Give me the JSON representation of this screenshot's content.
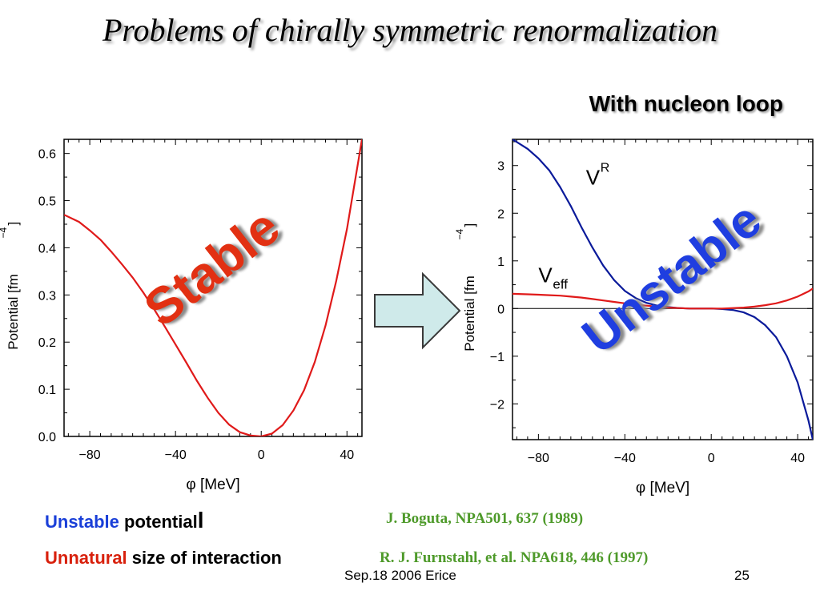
{
  "slide": {
    "title": "Problems of chirally symmetric renormalization",
    "subtitle": "With nucleon loop",
    "stable_label": "Stable",
    "unstable_label": "Unstable",
    "notes": [
      {
        "colored": "Unstable",
        "rest": " potential",
        "tail": "l"
      },
      {
        "colored": "Unnatural",
        "rest": " size of interaction"
      }
    ],
    "citations": [
      "J. Boguta, NPA501, 637 (1989)",
      "R. J. Furnstahl, et al.  NPA618,  446 (1997)"
    ],
    "footer": {
      "date": "Sep.18 2006 Erice",
      "page": "25"
    },
    "colors": {
      "curve_red": "#e01a1a",
      "curve_blue": "#0a1a9a",
      "arrow_fill": "#cfeaea",
      "stable_text": "#e23012",
      "unstable_text": "#1f3ee0"
    }
  },
  "chart_data": [
    {
      "type": "line",
      "title": "",
      "xlabel": "φ [MeV]",
      "ylabel": "Potential [fm",
      "ylabel_sup": "−4",
      "ylabel_close": "]",
      "xlim": [
        -92,
        47
      ],
      "ylim": [
        0,
        0.63
      ],
      "xticks": [
        -80,
        -40,
        0,
        40
      ],
      "xtick_labels": [
        "−80",
        "−40",
        "0",
        "40"
      ],
      "yticks": [
        0,
        0.1,
        0.2,
        0.3,
        0.4,
        0.5,
        0.6
      ],
      "ytick_labels": [
        "0.0",
        "0.1",
        "0.2",
        "0.3",
        "0.4",
        "0.5",
        "0.6"
      ],
      "series": [
        {
          "color": "#e01a1a",
          "x": [
            -92,
            -85,
            -80,
            -75,
            -70,
            -65,
            -60,
            -55,
            -50,
            -45,
            -40,
            -35,
            -30,
            -25,
            -20,
            -15,
            -10,
            -5,
            0,
            5,
            10,
            15,
            20,
            25,
            30,
            35,
            40,
            45,
            47
          ],
          "y": [
            0.47,
            0.455,
            0.437,
            0.417,
            0.392,
            0.365,
            0.337,
            0.305,
            0.27,
            0.233,
            0.195,
            0.157,
            0.118,
            0.082,
            0.05,
            0.025,
            0.009,
            0.002,
            0.0,
            0.006,
            0.024,
            0.055,
            0.098,
            0.158,
            0.235,
            0.33,
            0.44,
            0.575,
            0.63
          ]
        }
      ]
    },
    {
      "type": "line",
      "title": "",
      "xlabel": "φ [MeV]",
      "ylabel": "Potential [fm",
      "ylabel_sup": "−4",
      "ylabel_close": "]",
      "xlim": [
        -92,
        47
      ],
      "ylim": [
        -2.75,
        3.55
      ],
      "xticks": [
        -80,
        -40,
        0,
        40
      ],
      "xtick_labels": [
        "−80",
        "−40",
        "0",
        "40"
      ],
      "yticks": [
        -2,
        -1,
        0,
        1,
        2,
        3
      ],
      "ytick_labels": [
        "−2",
        "−1",
        "0",
        "1",
        "2",
        "3"
      ],
      "annotations": [
        {
          "text": "V",
          "sup": "R",
          "x": -58,
          "y": 2.6
        },
        {
          "text": "V",
          "sub": "eff",
          "x": -80,
          "y": 0.55
        }
      ],
      "series": [
        {
          "name": "V^R",
          "color": "#0a1a9a",
          "x": [
            -92,
            -85,
            -80,
            -75,
            -70,
            -65,
            -60,
            -55,
            -50,
            -45,
            -40,
            -35,
            -30,
            -25,
            -20,
            -15,
            -10,
            -5,
            0,
            5,
            10,
            15,
            20,
            25,
            30,
            35,
            40,
            45,
            47
          ],
          "y": [
            3.55,
            3.35,
            3.15,
            2.9,
            2.55,
            2.15,
            1.7,
            1.28,
            0.9,
            0.6,
            0.37,
            0.22,
            0.12,
            0.06,
            0.03,
            0.01,
            0.0,
            0.0,
            0.0,
            -0.01,
            -0.03,
            -0.08,
            -0.18,
            -0.35,
            -0.6,
            -1.0,
            -1.55,
            -2.35,
            -2.75
          ]
        },
        {
          "name": "V_eff",
          "color": "#e01a1a",
          "x": [
            -92,
            -85,
            -80,
            -75,
            -70,
            -65,
            -60,
            -55,
            -50,
            -45,
            -40,
            -35,
            -30,
            -25,
            -20,
            -15,
            -10,
            -5,
            0,
            5,
            10,
            15,
            20,
            25,
            30,
            35,
            40,
            45,
            47
          ],
          "y": [
            0.31,
            0.3,
            0.29,
            0.28,
            0.27,
            0.25,
            0.23,
            0.2,
            0.17,
            0.14,
            0.11,
            0.08,
            0.06,
            0.04,
            0.02,
            0.01,
            0.0,
            0.0,
            0.0,
            0.0,
            0.01,
            0.02,
            0.04,
            0.07,
            0.11,
            0.17,
            0.25,
            0.36,
            0.42
          ]
        }
      ]
    }
  ]
}
